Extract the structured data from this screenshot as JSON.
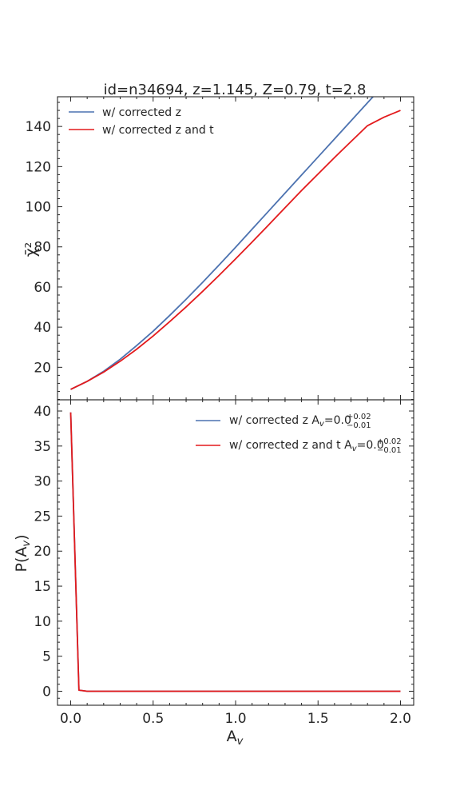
{
  "chart_data": [
    {
      "type": "line",
      "title": "id=n34694, z=1.145, Z=0.79, t=2.8",
      "xlabel": "",
      "ylabel": "χ̄²",
      "xlim": [
        -0.08,
        2.08
      ],
      "ylim": [
        3.8,
        154.8
      ],
      "yticks": [
        20,
        40,
        60,
        80,
        100,
        120,
        140
      ],
      "ytick_labels": [
        "20",
        "40",
        "60",
        "80",
        "100",
        "120",
        "140"
      ],
      "legend_position": "upper left",
      "x": [
        0.0,
        0.1,
        0.2,
        0.3,
        0.4,
        0.5,
        0.6,
        0.7,
        0.8,
        0.9,
        1.0,
        1.1,
        1.2,
        1.3,
        1.4,
        1.5,
        1.6,
        1.7,
        1.8,
        1.9,
        2.0
      ],
      "series": [
        {
          "name": "w/ corrected z",
          "color": "#4c72b0",
          "values": [
            9.0,
            13.0,
            18.0,
            24.0,
            30.8,
            38.0,
            45.8,
            53.9,
            62.3,
            71.0,
            79.8,
            88.8,
            97.8,
            106.8,
            115.8,
            124.8,
            133.8,
            142.8,
            151.8,
            160.8,
            169.8
          ]
        },
        {
          "name": "w/ corrected z and t",
          "color": "#e31a1c",
          "values": [
            9.0,
            13.0,
            17.6,
            23.0,
            29.0,
            35.6,
            42.7,
            50.1,
            57.8,
            65.8,
            74.0,
            82.4,
            90.9,
            99.5,
            108.1,
            116.3,
            124.5,
            132.5,
            140.4,
            144.6,
            148.0
          ]
        }
      ]
    },
    {
      "type": "line",
      "title": "",
      "xlabel": "A_v",
      "xlabel_main": "A",
      "xlabel_sub": "v",
      "ylabel": "P(A_v)",
      "ylabel_main": "P(A",
      "ylabel_sub": "v",
      "ylabel_close": ")",
      "xlim": [
        -0.08,
        2.08
      ],
      "ylim": [
        -2.0,
        41.6
      ],
      "xticks": [
        0.0,
        0.5,
        1.0,
        1.5,
        2.0
      ],
      "xtick_labels": [
        "0.0",
        "0.5",
        "1.0",
        "1.5",
        "2.0"
      ],
      "yticks": [
        0,
        5,
        10,
        15,
        20,
        25,
        30,
        35,
        40
      ],
      "ytick_labels": [
        "0",
        "5",
        "10",
        "15",
        "20",
        "25",
        "30",
        "35",
        "40"
      ],
      "legend_position": "upper right",
      "x": [
        0.0,
        0.05,
        0.1,
        0.15,
        0.2,
        0.5,
        1.0,
        1.5,
        2.0
      ],
      "series": [
        {
          "name": "w/ corrected z A_v=0.0 (+0.02 / -0.01)",
          "label_text": "w/ corrected z A",
          "label_sub": "v",
          "label_value": "=0.0",
          "label_sup": "+0.02",
          "label_inf": "−0.01",
          "color": "#4c72b0",
          "values": [
            39.8,
            0.15,
            0.0,
            0.0,
            0.0,
            0.0,
            0.0,
            0.0,
            0.0
          ]
        },
        {
          "name": "w/ corrected z and t A_v=0.0 (+0.02 / -0.01)",
          "label_text": "w/ corrected z and t A",
          "label_sub": "v",
          "label_value": "=0.0",
          "label_sup": "+0.02",
          "label_inf": "−0.01",
          "color": "#e31a1c",
          "values": [
            39.8,
            0.15,
            0.0,
            0.0,
            0.0,
            0.0,
            0.0,
            0.0,
            0.0
          ]
        }
      ]
    }
  ]
}
